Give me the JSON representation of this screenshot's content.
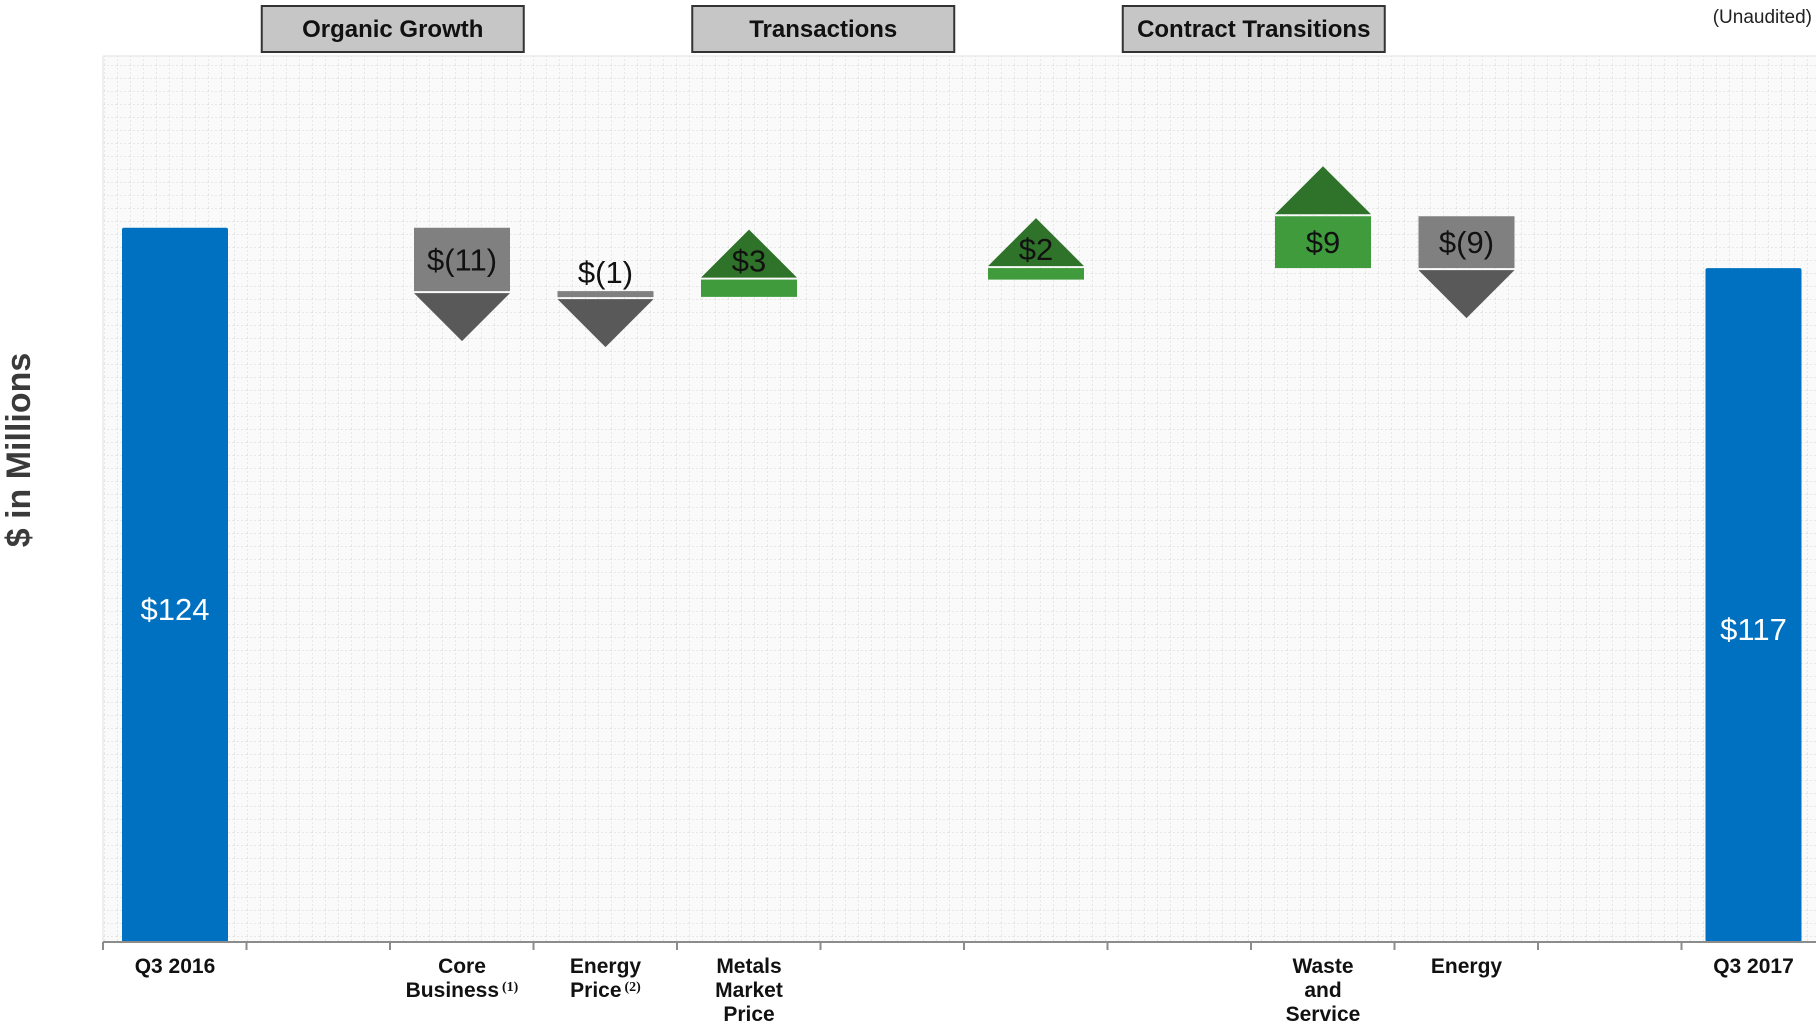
{
  "note": "(Unaudited)",
  "colors": {
    "start_end": "#0070c0",
    "increase": "#3f9b3c",
    "increase_arrow": "#2f7229",
    "decrease": "#808080",
    "decrease_arrow": "#595959"
  },
  "chart_data": {
    "type": "bar",
    "subtype": "waterfall",
    "ylabel": "$ in Millions",
    "ylim": [
      0,
      160
    ],
    "grid": true,
    "groups": [
      {
        "label": "Organic Growth",
        "from": 1,
        "to": 3
      },
      {
        "label": "Transactions",
        "from": 4,
        "to": 6
      },
      {
        "label": "Contract Transitions",
        "from": 7,
        "to": 9
      }
    ],
    "slots": [
      {
        "label": "Q3 2016",
        "kind": "total",
        "value": 124,
        "value_label": "$124"
      },
      {
        "label": "",
        "kind": "blank"
      },
      {
        "label": "Core Business",
        "note": "(1)",
        "kind": "delta",
        "value": -11,
        "value_label": "$(11)"
      },
      {
        "label": "Energy Price",
        "note": "(2)",
        "kind": "delta",
        "value": -1,
        "value_label": "$(1)"
      },
      {
        "label": "Metals Market Price",
        "kind": "delta",
        "value": 3,
        "value_label": "$3"
      },
      {
        "label": "",
        "kind": "blank"
      },
      {
        "label": "",
        "kind": "delta",
        "value": 2,
        "value_label": "$2"
      },
      {
        "label": "",
        "kind": "blank"
      },
      {
        "label": "Waste and Service",
        "kind": "delta",
        "value": 9,
        "value_label": "$9"
      },
      {
        "label": "Energy",
        "kind": "delta",
        "value": -9,
        "value_label": "$(9)"
      },
      {
        "label": "",
        "kind": "blank"
      },
      {
        "label": "Q3 2017",
        "kind": "total",
        "value": 117,
        "value_label": "$117"
      }
    ]
  }
}
